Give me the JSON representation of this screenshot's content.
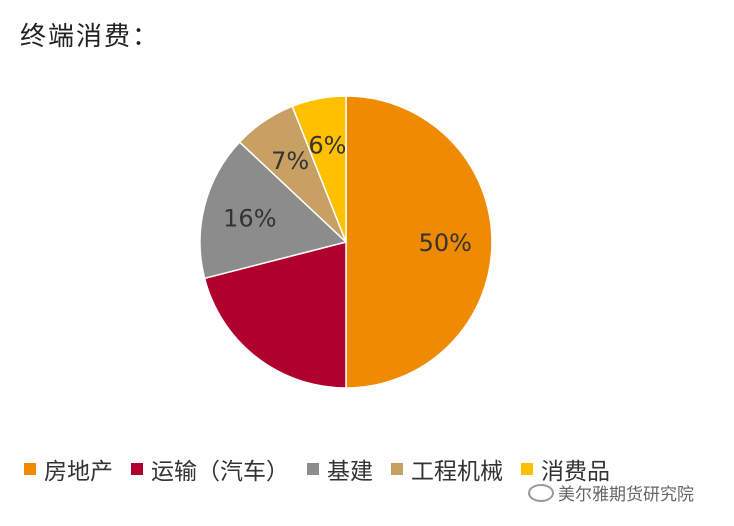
{
  "title": "终端消费：",
  "chart_data": {
    "type": "pie",
    "title": "",
    "categories": [
      "房地产",
      "运输（汽车）",
      "基建",
      "工程机械",
      "消费品"
    ],
    "values": [
      50,
      21,
      16,
      7,
      6
    ],
    "labels": [
      "50%",
      "",
      "16%",
      "7%",
      "6%"
    ],
    "colors": [
      "#F08A00",
      "#B0002E",
      "#8C8C8C",
      "#C8A063",
      "#FFC000"
    ],
    "label_colors": [
      "#333333",
      "#333333",
      "#333333",
      "#333333",
      "#333333"
    ],
    "start": "12 o'clock",
    "direction": "clockwise",
    "legend_position": "bottom"
  },
  "watermark": {
    "text": "美尔雅期货研究院",
    "icon": "wechat-icon"
  }
}
